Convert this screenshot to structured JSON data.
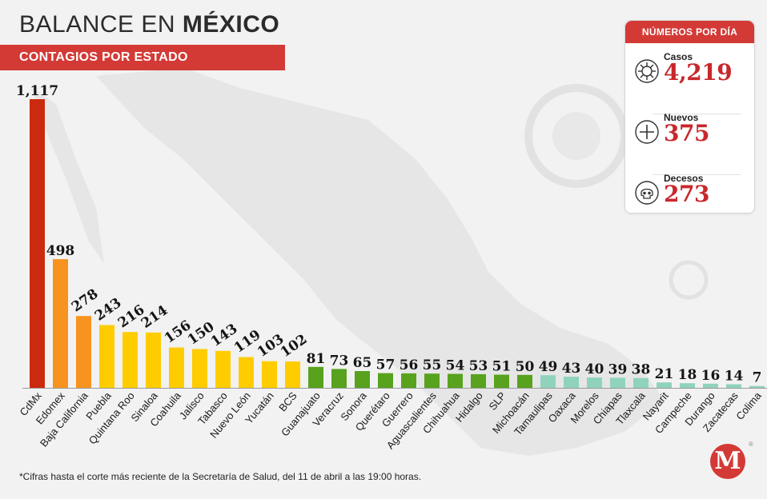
{
  "header": {
    "title_regular": "BALANCE EN ",
    "title_bold": "MÉXICO",
    "subtitle": "CONTAGIOS POR ESTADO"
  },
  "panel": {
    "title": "NÚMEROS POR DÍA",
    "stats": [
      {
        "label": "Casos",
        "value": "4,219",
        "icon": "virus-icon"
      },
      {
        "label": "Nuevos",
        "value": "375",
        "icon": "plus-circle-icon"
      },
      {
        "label": "Decesos",
        "value": "273",
        "icon": "skull-icon"
      }
    ]
  },
  "footnote": "*Cifras hasta el corte más reciente de la Secretaría de Salud, del 11 de abril a las 19:00 horas.",
  "logo": {
    "letter": "M",
    "reg": "®"
  },
  "chart_data": {
    "type": "bar",
    "categories": [
      "CdMx",
      "Edomex",
      "Baja California",
      "Puebla",
      "Quintana Roo",
      "Sinaloa",
      "Coahuila",
      "Jalisco",
      "Tabasco",
      "Nuevo León",
      "Yucatán",
      "BCS",
      "Guanajuato",
      "Veracruz",
      "Sonora",
      "Querétaro",
      "Guerrero",
      "Aguascalientes",
      "Chihuahua",
      "Hidalgo",
      "SLP",
      "Michoacán",
      "Tamaulipas",
      "Oaxaca",
      "Morelos",
      "Chiapas",
      "Tlaxcala",
      "Nayarit",
      "Campeche",
      "Durango",
      "Zacatecas",
      "Colima"
    ],
    "values": [
      1117,
      498,
      278,
      243,
      216,
      214,
      156,
      150,
      143,
      119,
      103,
      102,
      81,
      73,
      65,
      57,
      56,
      55,
      54,
      53,
      51,
      50,
      49,
      43,
      40,
      39,
      38,
      21,
      18,
      16,
      14,
      7
    ],
    "value_labels": [
      "1,117",
      "498",
      "278",
      "243",
      "216",
      "214",
      "156",
      "150",
      "143",
      "119",
      "103",
      "102",
      "81",
      "73",
      "65",
      "57",
      "56",
      "55",
      "54",
      "53",
      "51",
      "50",
      "49",
      "43",
      "40",
      "39",
      "38",
      "21",
      "18",
      "16",
      "14",
      "7"
    ],
    "colors": [
      "#cc2a0e",
      "#f7931e",
      "#f7931e",
      "#ffcc00",
      "#ffcc00",
      "#ffcc00",
      "#ffcc00",
      "#ffcc00",
      "#ffcc00",
      "#ffcc00",
      "#ffcc00",
      "#ffcc00",
      "#58a21e",
      "#58a21e",
      "#58a21e",
      "#58a21e",
      "#58a21e",
      "#58a21e",
      "#58a21e",
      "#58a21e",
      "#58a21e",
      "#58a21e",
      "#8fd3bd",
      "#8fd3bd",
      "#8fd3bd",
      "#8fd3bd",
      "#8fd3bd",
      "#8fd3bd",
      "#8fd3bd",
      "#8fd3bd",
      "#8fd3bd",
      "#8fd3bd"
    ],
    "title": "",
    "xlabel": "",
    "ylabel": "",
    "ylim": [
      0,
      1117
    ],
    "grid": false,
    "legend": "none"
  }
}
